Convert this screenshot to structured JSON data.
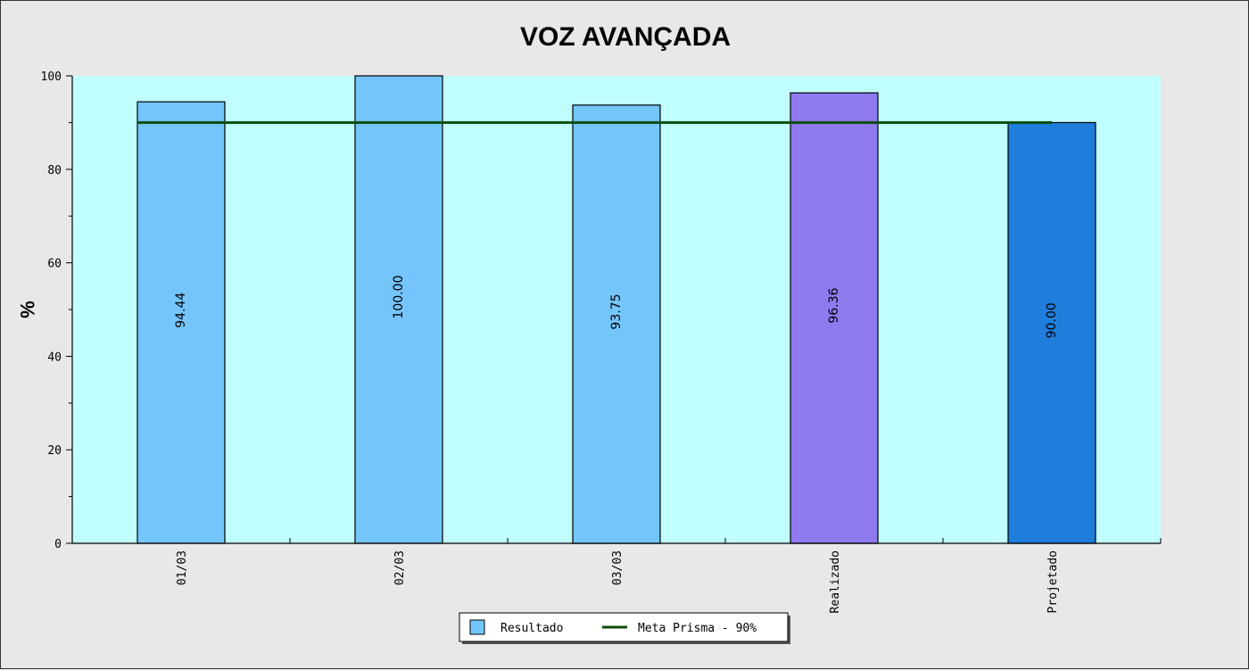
{
  "chart_data": {
    "type": "bar",
    "title": "VOZ AVANÇADA",
    "xlabel": "",
    "ylabel": "%",
    "ylim": [
      0,
      100
    ],
    "yticks": [
      0,
      20,
      40,
      60,
      80,
      100
    ],
    "grid": false,
    "categories": [
      "01/03",
      "02/03",
      "03/03",
      "Realizado",
      "Projetado"
    ],
    "values": [
      94.44,
      100.0,
      93.75,
      96.36,
      90.0
    ],
    "value_labels": [
      "94.44",
      "100.00",
      "93.75",
      "96.36",
      "90.00"
    ],
    "bar_colors": [
      "#74c5fc",
      "#74c5fc",
      "#74c5fc",
      "#8f7af0",
      "#1f7ddc"
    ],
    "plot_background": "#c1ffff",
    "series": [
      {
        "name": "Resultado",
        "type": "bar",
        "color": "#74c5fc"
      },
      {
        "name": "Meta Prisma - 90%",
        "type": "line",
        "color": "#0b4d0b",
        "value": 90
      }
    ],
    "legend_position": "bottom-center"
  }
}
